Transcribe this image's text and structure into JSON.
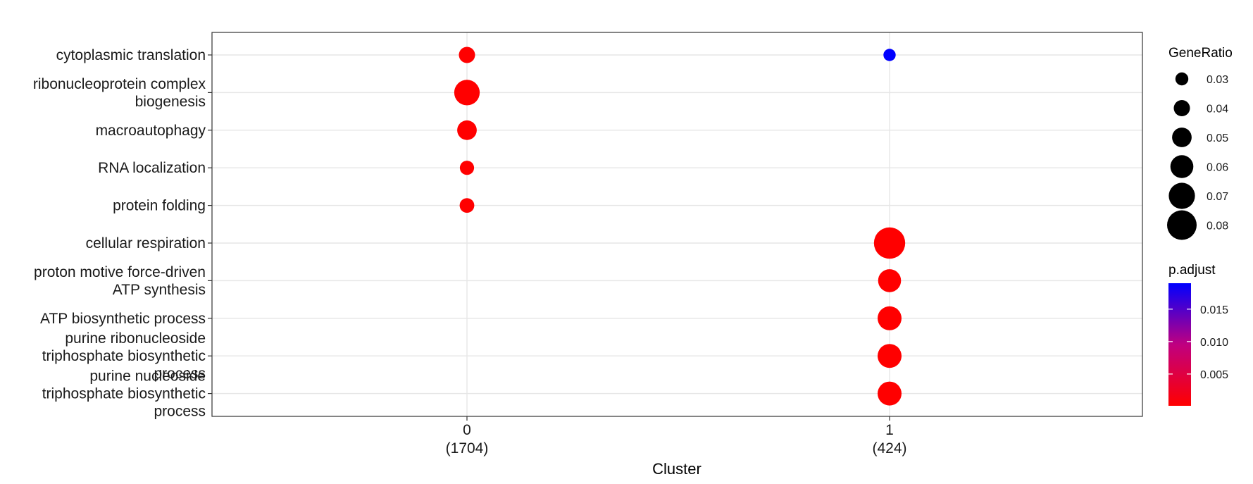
{
  "chart_data": {
    "type": "scatter",
    "xlabel": "Cluster",
    "x_categories": [
      {
        "label": "0",
        "count": "(1704)"
      },
      {
        "label": "1",
        "count": "(424)"
      }
    ],
    "y_categories": [
      "cytoplasmic translation",
      "ribonucleoprotein complex biogenesis",
      "macroautophagy",
      "RNA localization",
      "protein folding",
      "cellular respiration",
      "proton motive force-driven ATP synthesis",
      "ATP biosynthetic process",
      "purine ribonucleoside triphosphate biosynthetic process",
      "purine nucleoside triphosphate biosynthetic process"
    ],
    "y_labels_wrapped": [
      [
        "cytoplasmic translation"
      ],
      [
        "ribonucleoprotein complex",
        "biogenesis"
      ],
      [
        "macroautophagy"
      ],
      [
        "RNA localization"
      ],
      [
        "protein folding"
      ],
      [
        "cellular respiration"
      ],
      [
        "proton motive force-driven",
        "ATP synthesis"
      ],
      [
        "ATP biosynthetic process"
      ],
      [
        "purine ribonucleoside",
        "triphosphate biosynthetic",
        "process"
      ],
      [
        "purine nucleoside",
        "triphosphate biosynthetic",
        "process"
      ]
    ],
    "points": [
      {
        "cluster": "0",
        "term": "cytoplasmic translation",
        "GeneRatio": 0.04,
        "p_adjust": 0.0001
      },
      {
        "cluster": "0",
        "term": "ribonucleoprotein complex biogenesis",
        "GeneRatio": 0.068,
        "p_adjust": 0.0001
      },
      {
        "cluster": "0",
        "term": "macroautophagy",
        "GeneRatio": 0.05,
        "p_adjust": 0.0001
      },
      {
        "cluster": "0",
        "term": "RNA localization",
        "GeneRatio": 0.034,
        "p_adjust": 0.0001
      },
      {
        "cluster": "0",
        "term": "protein folding",
        "GeneRatio": 0.035,
        "p_adjust": 0.0001
      },
      {
        "cluster": "1",
        "term": "cytoplasmic translation",
        "GeneRatio": 0.028,
        "p_adjust": 0.019
      },
      {
        "cluster": "1",
        "term": "cellular respiration",
        "GeneRatio": 0.085,
        "p_adjust": 0.0001
      },
      {
        "cluster": "1",
        "term": "proton motive force-driven ATP synthesis",
        "GeneRatio": 0.06,
        "p_adjust": 0.0001
      },
      {
        "cluster": "1",
        "term": "ATP biosynthetic process",
        "GeneRatio": 0.063,
        "p_adjust": 0.0001
      },
      {
        "cluster": "1",
        "term": "purine ribonucleoside triphosphate biosynthetic process",
        "GeneRatio": 0.063,
        "p_adjust": 0.0001
      },
      {
        "cluster": "1",
        "term": "purine nucleoside triphosphate biosynthetic process",
        "GeneRatio": 0.063,
        "p_adjust": 0.0001
      }
    ],
    "size_legend": {
      "title": "GeneRatio",
      "values": [
        0.03,
        0.04,
        0.05,
        0.06,
        0.07,
        0.08
      ],
      "labels": [
        "0.03",
        "0.04",
        "0.05",
        "0.06",
        "0.07",
        "0.08"
      ]
    },
    "color_legend": {
      "title": "p.adjust",
      "range": [
        0.0001,
        0.019
      ],
      "ticks": [
        0.005,
        0.01,
        0.015
      ],
      "tick_labels": [
        "0.005",
        "0.010",
        "0.015"
      ],
      "low_color": "#ff0000",
      "high_color": "#0000ff"
    },
    "grid": true,
    "legend_position": "right"
  }
}
